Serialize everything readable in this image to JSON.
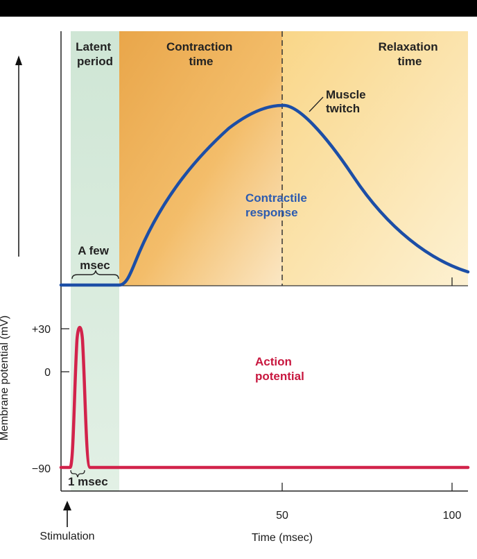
{
  "phases": {
    "latent": [
      "Latent",
      "period"
    ],
    "contraction": [
      "Contraction",
      "time"
    ],
    "relaxation": [
      "Relaxation",
      "time"
    ]
  },
  "annotations": {
    "muscle_twitch": [
      "Muscle",
      "twitch"
    ],
    "contractile_response": [
      "Contractile",
      "response"
    ],
    "a_few_msec": [
      "A few",
      "msec"
    ],
    "action_potential": [
      "Action",
      "potential"
    ],
    "one_msec": "1 msec"
  },
  "axes": {
    "y_label": "Membrane potential (mV)",
    "y_ticks": [
      "+30",
      "0",
      "−90"
    ],
    "x_ticks": [
      "50",
      "100"
    ],
    "x_label": "Time (msec)",
    "stimulation_label": "Stimulation"
  },
  "colors": {
    "latent_band": "#d6eadb",
    "contraction_band": "#f0b252",
    "relaxation_band": "#fbe3ae",
    "twitch_curve": "#1c4ea6",
    "action_potential_curve": "#d2234b",
    "response_text": "#2c5bb0",
    "potential_text": "#c8173f"
  }
}
